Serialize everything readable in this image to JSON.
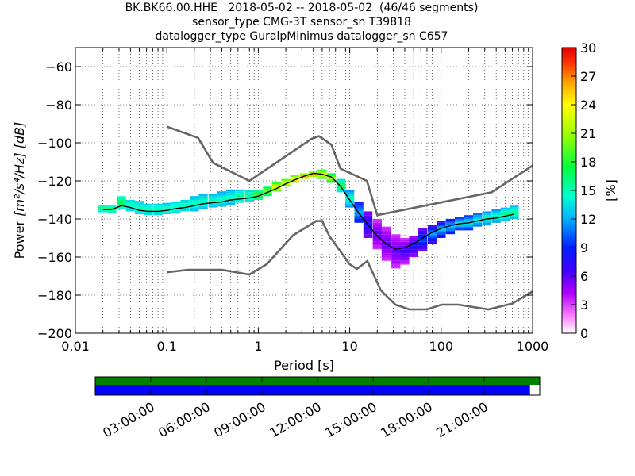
{
  "title_lines": [
    "BK.BK66.00.HHE   2018-05-02 -- 2018-05-02  (46/46 segments)",
    "sensor_type CMG-3T sensor_sn T39818",
    "datalogger_type GuralpMinimus datalogger_sn C657"
  ],
  "colors": {
    "model_curves": "#666666",
    "mean_curve": "#000000",
    "coverage_top": "#008000",
    "coverage_bottom": "#0000ff"
  },
  "chart_data": {
    "type": "heatmap",
    "xlabel": "Period [s]",
    "ylabel_prefix": "Power",
    "ylabel_units": "[m²/s⁴/Hz] [dB]",
    "xscale": "log",
    "xlim": [
      0.01,
      1000
    ],
    "ylim": [
      -200,
      -50
    ],
    "x_ticks": [
      0.01,
      0.1,
      1,
      10,
      100,
      1000
    ],
    "x_tick_labels": [
      "0.01",
      "0.1",
      "1",
      "10",
      "100",
      "1000"
    ],
    "y_ticks": [
      -200,
      -180,
      -160,
      -140,
      -120,
      -100,
      -80,
      -60
    ],
    "y_tick_labels": [
      "−200",
      "−180",
      "−160",
      "−140",
      "−120",
      "−100",
      "−80",
      "−60"
    ],
    "grid": true,
    "colorbar": {
      "label": "[%]",
      "range": [
        0,
        30
      ],
      "ticks": [
        0,
        3,
        6,
        9,
        12,
        15,
        18,
        21,
        24,
        27,
        30
      ],
      "tick_labels": [
        "0",
        "3",
        "6",
        "9",
        "12",
        "15",
        "18",
        "21",
        "24",
        "27",
        "30"
      ],
      "colormap": "pqlx"
    },
    "new_high_noise_model": [
      [
        0.1,
        -91.5
      ],
      [
        0.22,
        -97.4
      ],
      [
        0.32,
        -110.5
      ],
      [
        0.8,
        -120
      ],
      [
        3.8,
        -98
      ],
      [
        4.6,
        -96.5
      ],
      [
        6.3,
        -101
      ],
      [
        7.9,
        -113.5
      ],
      [
        15.4,
        -120
      ],
      [
        20,
        -138
      ],
      [
        354.8,
        -126
      ],
      [
        1000,
        -112
      ]
    ],
    "new_low_noise_model": [
      [
        0.1,
        -168
      ],
      [
        0.17,
        -166.7
      ],
      [
        0.4,
        -166.7
      ],
      [
        0.8,
        -169.2
      ],
      [
        1.24,
        -163.7
      ],
      [
        2.4,
        -148.6
      ],
      [
        4.3,
        -141.1
      ],
      [
        5,
        -141.1
      ],
      [
        6,
        -149
      ],
      [
        10,
        -163.8
      ],
      [
        12,
        -166.2
      ],
      [
        15.6,
        -162.1
      ],
      [
        21.9,
        -177.5
      ],
      [
        31.6,
        -185
      ],
      [
        45,
        -187.5
      ],
      [
        70,
        -187.5
      ],
      [
        101,
        -185
      ],
      [
        154,
        -185
      ],
      [
        328,
        -187.5
      ],
      [
        600,
        -184.4
      ],
      [
        1000,
        -178
      ]
    ],
    "mean_psd": [
      [
        0.02,
        -135
      ],
      [
        0.025,
        -135
      ],
      [
        0.032,
        -133
      ],
      [
        0.04,
        -134
      ],
      [
        0.05,
        -135.5
      ],
      [
        0.063,
        -136
      ],
      [
        0.08,
        -136
      ],
      [
        0.1,
        -135.5
      ],
      [
        0.126,
        -134.5
      ],
      [
        0.158,
        -134
      ],
      [
        0.2,
        -133
      ],
      [
        0.25,
        -132
      ],
      [
        0.32,
        -131.5
      ],
      [
        0.4,
        -131
      ],
      [
        0.5,
        -130
      ],
      [
        0.63,
        -129.5
      ],
      [
        0.8,
        -129
      ],
      [
        1,
        -128
      ],
      [
        1.26,
        -126
      ],
      [
        1.58,
        -124
      ],
      [
        2,
        -121.5
      ],
      [
        2.5,
        -119.5
      ],
      [
        3.2,
        -117.5
      ],
      [
        4,
        -116
      ],
      [
        5,
        -116.5
      ],
      [
        6.3,
        -118
      ],
      [
        8,
        -123
      ],
      [
        10,
        -130
      ],
      [
        12.6,
        -137
      ],
      [
        15.8,
        -143
      ],
      [
        20,
        -149
      ],
      [
        25,
        -153
      ],
      [
        32,
        -156
      ],
      [
        40,
        -155
      ],
      [
        50,
        -153
      ],
      [
        63,
        -150
      ],
      [
        80,
        -147
      ],
      [
        100,
        -145
      ],
      [
        126,
        -143.5
      ],
      [
        158,
        -142.5
      ],
      [
        200,
        -142
      ],
      [
        250,
        -141
      ],
      [
        316,
        -140
      ],
      [
        400,
        -139.5
      ],
      [
        500,
        -138.5
      ],
      [
        630,
        -137.5
      ]
    ],
    "histogram_bands": [
      [
        0.02,
        -136.5,
        -132.5,
        13,
        17
      ],
      [
        0.025,
        -137,
        -133,
        13,
        17
      ],
      [
        0.032,
        -135,
        -128,
        14,
        17
      ],
      [
        0.04,
        -136,
        -130,
        13,
        15
      ],
      [
        0.05,
        -137.5,
        -131,
        13,
        15
      ],
      [
        0.063,
        -138,
        -132,
        13,
        15
      ],
      [
        0.08,
        -138,
        -132,
        13,
        15
      ],
      [
        0.1,
        -137.5,
        -132,
        13,
        15
      ],
      [
        0.126,
        -137,
        -131,
        13,
        15
      ],
      [
        0.158,
        -136,
        -130,
        13,
        15
      ],
      [
        0.2,
        -136,
        -128,
        12,
        15
      ],
      [
        0.25,
        -135,
        -127,
        12,
        15
      ],
      [
        0.32,
        -134,
        -127,
        12,
        15
      ],
      [
        0.4,
        -133.5,
        -126,
        12,
        15
      ],
      [
        0.5,
        -132.5,
        -125,
        12,
        15
      ],
      [
        0.63,
        -131.5,
        -125,
        13,
        16
      ],
      [
        0.8,
        -131,
        -125,
        13,
        16
      ],
      [
        1,
        -130,
        -125,
        15,
        19
      ],
      [
        1.26,
        -128,
        -123,
        16,
        20
      ],
      [
        1.58,
        -125.5,
        -121,
        18,
        24
      ],
      [
        2,
        -123,
        -119,
        18,
        24
      ],
      [
        2.5,
        -121,
        -117,
        18,
        26
      ],
      [
        3.2,
        -119,
        -116,
        18,
        26
      ],
      [
        4,
        -118,
        -115,
        18,
        26
      ],
      [
        5,
        -119,
        -114,
        17,
        24
      ],
      [
        6.3,
        -121,
        -116,
        16,
        22
      ],
      [
        8,
        -126,
        -119,
        13,
        18
      ],
      [
        10,
        -134,
        -125,
        11,
        15
      ],
      [
        12.6,
        -142,
        -131,
        8,
        12
      ],
      [
        15.8,
        -150,
        -136,
        5,
        8
      ],
      [
        20,
        -156,
        -140,
        3,
        6
      ],
      [
        25,
        -162,
        -144,
        3,
        6
      ],
      [
        32,
        -166,
        -148,
        3,
        6
      ],
      [
        40,
        -164,
        -150,
        3,
        7
      ],
      [
        50,
        -160,
        -149,
        4,
        8
      ],
      [
        63,
        -157,
        -145,
        5,
        10
      ],
      [
        80,
        -153,
        -143,
        6,
        12
      ],
      [
        100,
        -150,
        -141,
        7,
        13
      ],
      [
        126,
        -148,
        -140,
        8,
        13
      ],
      [
        158,
        -146,
        -139,
        9,
        14
      ],
      [
        200,
        -146,
        -138,
        9,
        14
      ],
      [
        250,
        -144,
        -137,
        10,
        14
      ],
      [
        316,
        -143,
        -136,
        11,
        15
      ],
      [
        400,
        -142,
        -135,
        11,
        15
      ],
      [
        500,
        -141,
        -134,
        12,
        16
      ],
      [
        630,
        -140,
        -133,
        12,
        16
      ]
    ]
  },
  "coverage": {
    "ticks": [
      "03:00:00",
      "06:00:00",
      "09:00:00",
      "12:00:00",
      "15:00:00",
      "18:00:00",
      "21:00:00"
    ],
    "data_fraction": 0.978
  }
}
